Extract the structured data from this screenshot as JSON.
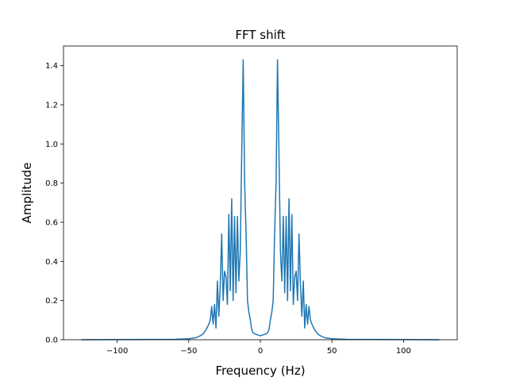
{
  "chart_data": {
    "type": "line",
    "title": "FFT shift",
    "xlabel": "Frequency (Hz)",
    "ylabel": "Amplitude",
    "xlim": [
      -137.5,
      137.5
    ],
    "ylim": [
      0,
      1.5
    ],
    "xticks": [
      -100,
      -50,
      0,
      50,
      100
    ],
    "xtick_labels": [
      "−100",
      "−50",
      "0",
      "50",
      "100"
    ],
    "yticks": [
      0.0,
      0.2,
      0.4,
      0.6,
      0.8,
      1.0,
      1.2,
      1.4
    ],
    "ytick_labels": [
      "0.0",
      "0.2",
      "0.4",
      "0.6",
      "0.8",
      "1.0",
      "1.2",
      "1.4"
    ],
    "grid": false,
    "legend": "none",
    "series": [
      {
        "color": "#1f77b4",
        "x": [
          -125,
          -60,
          -50,
          -45,
          -42,
          -40,
          -38,
          -36,
          -35,
          -34,
          -33,
          -32,
          -31,
          -30,
          -29,
          -28,
          -27,
          -26,
          -25,
          -24,
          -23,
          -22,
          -21,
          -20,
          -19,
          -18,
          -17,
          -16,
          -15,
          -14,
          -13,
          -12,
          -11,
          -10,
          -9,
          -8,
          -7,
          -6,
          -5,
          -4,
          -2,
          0,
          2,
          4,
          5,
          6,
          7,
          8,
          9,
          10,
          11,
          12,
          13,
          14,
          15,
          16,
          17,
          18,
          19,
          20,
          21,
          22,
          23,
          24,
          25,
          26,
          27,
          28,
          29,
          30,
          31,
          32,
          33,
          34,
          35,
          36,
          38,
          40,
          42,
          45,
          50,
          60,
          125
        ],
        "y": [
          0.0,
          0.002,
          0.005,
          0.01,
          0.02,
          0.03,
          0.05,
          0.08,
          0.1,
          0.17,
          0.08,
          0.18,
          0.06,
          0.3,
          0.12,
          0.28,
          0.54,
          0.2,
          0.35,
          0.32,
          0.18,
          0.64,
          0.25,
          0.72,
          0.2,
          0.63,
          0.24,
          0.63,
          0.3,
          0.45,
          0.97,
          1.43,
          0.8,
          0.55,
          0.2,
          0.14,
          0.1,
          0.05,
          0.035,
          0.03,
          0.025,
          0.02,
          0.025,
          0.03,
          0.035,
          0.05,
          0.1,
          0.14,
          0.2,
          0.55,
          0.8,
          1.43,
          0.97,
          0.45,
          0.3,
          0.63,
          0.24,
          0.63,
          0.2,
          0.72,
          0.25,
          0.64,
          0.18,
          0.32,
          0.35,
          0.2,
          0.54,
          0.28,
          0.12,
          0.3,
          0.06,
          0.18,
          0.08,
          0.17,
          0.1,
          0.08,
          0.05,
          0.03,
          0.02,
          0.01,
          0.005,
          0.002,
          0.0
        ]
      }
    ]
  }
}
